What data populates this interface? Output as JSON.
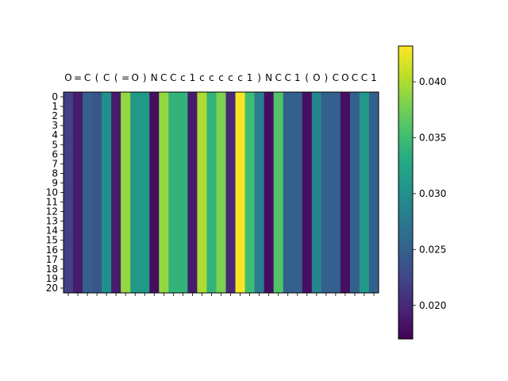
{
  "chart_data": {
    "type": "heatmap",
    "title": "",
    "xlabel": "",
    "ylabel": "",
    "colormap": "viridis",
    "x_tick_position": "top",
    "x_categories": [
      "O",
      "=",
      "C",
      "(",
      "C",
      "(",
      "=",
      "O",
      ")",
      "N",
      "C",
      "C",
      "c",
      "1",
      "c",
      "c",
      "c",
      "c",
      "c",
      "1",
      ")",
      "N",
      "C",
      "C",
      "1",
      "(",
      "O",
      ")",
      "C",
      "O",
      "C",
      "C",
      "1"
    ],
    "y_categories": [
      "0",
      "1",
      "2",
      "3",
      "4",
      "5",
      "6",
      "7",
      "8",
      "9",
      "10",
      "11",
      "12",
      "13",
      "14",
      "15",
      "16",
      "17",
      "18",
      "19",
      "20"
    ],
    "column_values": [
      0.022,
      0.019,
      0.025,
      0.024,
      0.03,
      0.019,
      0.039,
      0.031,
      0.031,
      0.018,
      0.039,
      0.034,
      0.034,
      0.019,
      0.04,
      0.034,
      0.038,
      0.02,
      0.043,
      0.035,
      0.028,
      0.018,
      0.036,
      0.025,
      0.025,
      0.018,
      0.029,
      0.025,
      0.025,
      0.018,
      0.025,
      0.031,
      0.025
    ],
    "rows_identical": true,
    "colorbar": {
      "min": 0.017,
      "max": 0.0432,
      "ticks": [
        0.02,
        0.025,
        0.03,
        0.035,
        0.04
      ],
      "tick_labels": [
        "0.020",
        "0.025",
        "0.030",
        "0.035",
        "0.040"
      ]
    },
    "grid": false,
    "legend": "none"
  }
}
